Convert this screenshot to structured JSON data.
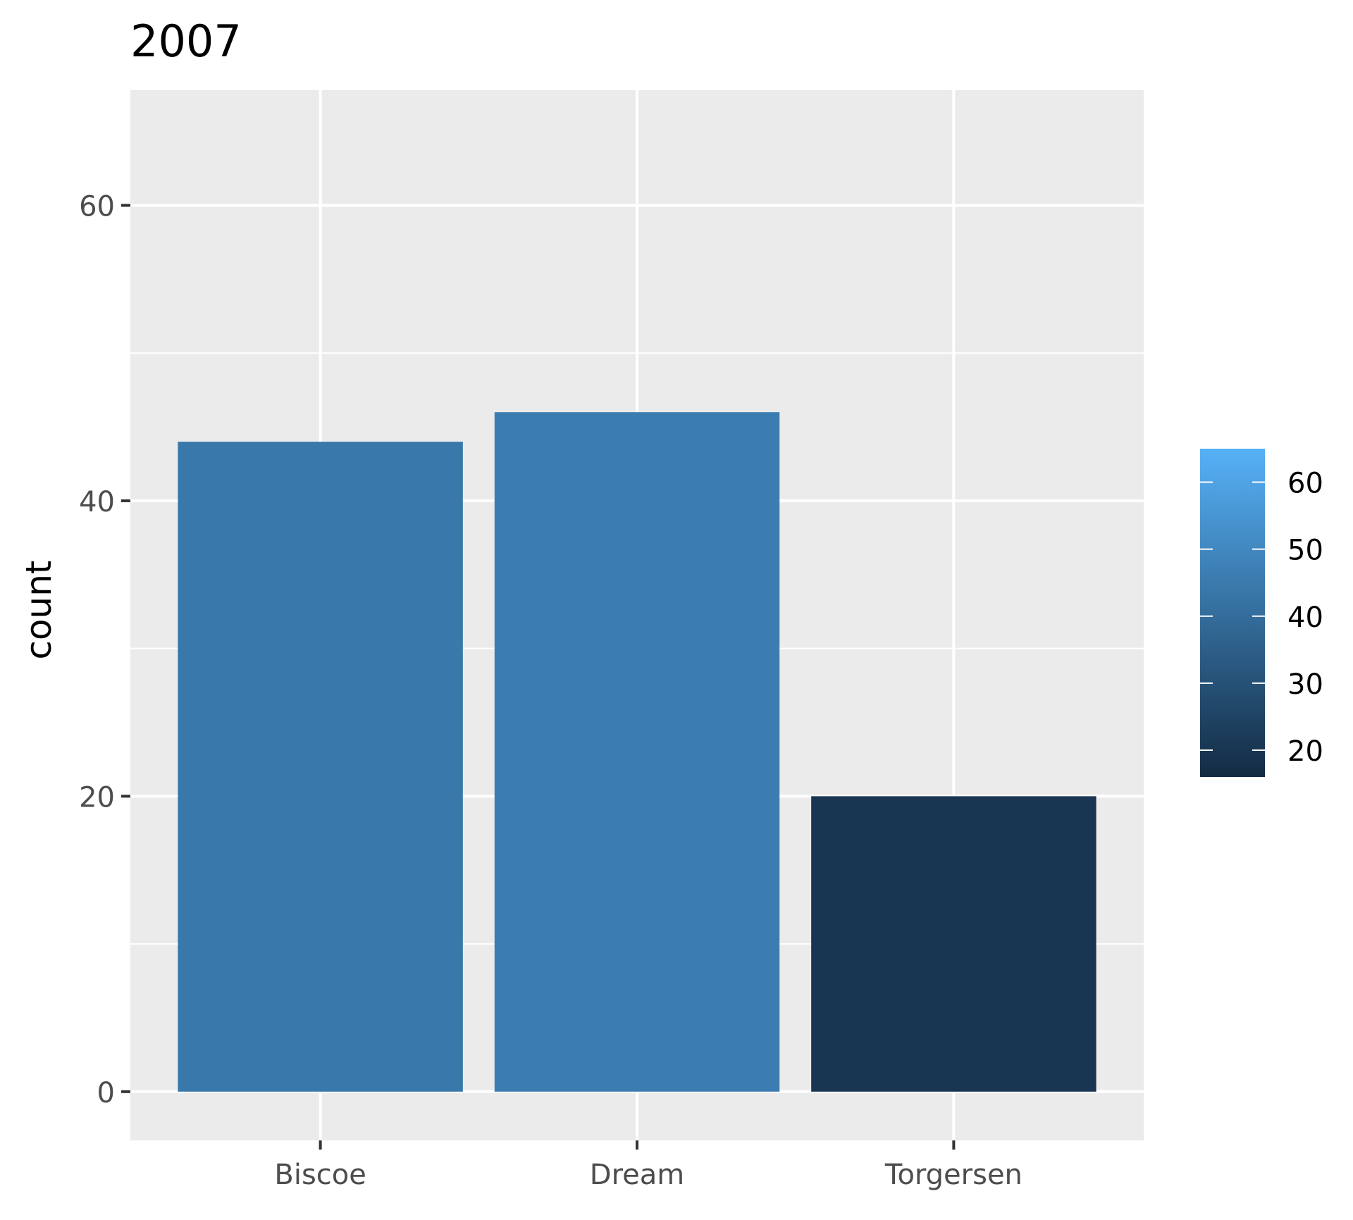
{
  "chart_data": {
    "type": "bar",
    "title": "2007",
    "xlabel": "",
    "ylabel": "count",
    "categories": [
      "Biscoe",
      "Dream",
      "Torgersen"
    ],
    "values": [
      44,
      46,
      20
    ],
    "ylim": [
      -3.3,
      67.8
    ],
    "yticks": [
      0,
      20,
      40,
      60
    ],
    "grid": true,
    "legend": {
      "placement": "right",
      "type": "colorbar",
      "title": "",
      "range": [
        16,
        65
      ],
      "ticks": [
        20,
        30,
        40,
        50,
        60
      ],
      "low_color": "#132b43",
      "high_color": "#56b1f7"
    },
    "colors": {
      "panel_background": "#ebebeb",
      "gridline": "#ffffff",
      "axis_text": "#4d4d4d",
      "title_text": "#000000"
    }
  }
}
